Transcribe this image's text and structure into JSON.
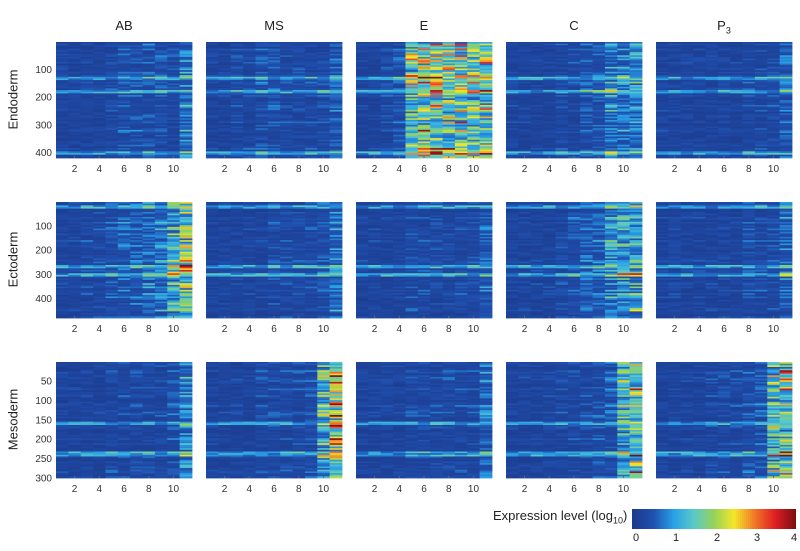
{
  "chart_data": {
    "type": "heatmap",
    "column_titles": [
      "AB",
      "MS",
      "E",
      "C",
      "P3"
    ],
    "column_title_subscript": {
      "P3": "3"
    },
    "row_titles": [
      "Endoderm",
      "Ectoderm",
      "Mesoderm"
    ],
    "x_ticks": [
      2,
      4,
      6,
      8,
      10
    ],
    "x_range": [
      1,
      11
    ],
    "rows": [
      {
        "title": "Endoderm",
        "y_ticks": [
          100,
          200,
          300,
          400
        ],
        "y_range": [
          1,
          420
        ],
        "bands": [
          135,
          180,
          400
        ]
      },
      {
        "title": "Ectoderm",
        "y_ticks": [
          100,
          200,
          300,
          400
        ],
        "y_range": [
          1,
          480
        ],
        "bands": [
          20,
          265,
          300
        ]
      },
      {
        "title": "Mesoderm",
        "y_ticks": [
          50,
          100,
          150,
          200,
          250,
          300
        ],
        "y_range": [
          1,
          300
        ],
        "bands": [
          160,
          235,
          240
        ]
      }
    ],
    "panel_column_levels": [
      [
        [
          0.3,
          0.3,
          0.3,
          0.3,
          0.4,
          0.5,
          0.5,
          0.5,
          0.5,
          0.4,
          0.9
        ],
        [
          0.3,
          0.3,
          0.4,
          0.4,
          0.5,
          0.5,
          0.4,
          0.4,
          0.4,
          0.4,
          0.6
        ],
        [
          0.3,
          0.3,
          0.4,
          0.5,
          1.9,
          2.0,
          2.1,
          2.0,
          1.9,
          1.8,
          1.9
        ],
        [
          0.3,
          0.3,
          0.3,
          0.3,
          0.4,
          0.4,
          0.5,
          0.6,
          0.9,
          0.8,
          1.0
        ],
        [
          0.3,
          0.3,
          0.3,
          0.3,
          0.3,
          0.3,
          0.3,
          0.4,
          0.4,
          0.4,
          0.6
        ]
      ],
      [
        [
          0.3,
          0.3,
          0.4,
          0.4,
          0.5,
          0.6,
          0.6,
          0.7,
          0.8,
          1.4,
          1.8
        ],
        [
          0.3,
          0.3,
          0.3,
          0.3,
          0.3,
          0.4,
          0.4,
          0.4,
          0.4,
          0.5,
          0.8
        ],
        [
          0.3,
          0.3,
          0.3,
          0.3,
          0.4,
          0.4,
          0.4,
          0.4,
          0.4,
          0.4,
          0.6
        ],
        [
          0.3,
          0.3,
          0.3,
          0.3,
          0.4,
          0.5,
          0.6,
          0.7,
          1.0,
          1.2,
          1.3
        ],
        [
          0.3,
          0.3,
          0.3,
          0.3,
          0.3,
          0.3,
          0.3,
          0.4,
          0.4,
          0.4,
          0.7
        ]
      ],
      [
        [
          0.3,
          0.3,
          0.3,
          0.3,
          0.4,
          0.4,
          0.4,
          0.4,
          0.4,
          0.5,
          1.0
        ],
        [
          0.3,
          0.3,
          0.3,
          0.3,
          0.4,
          0.4,
          0.4,
          0.4,
          0.5,
          1.5,
          2.5
        ],
        [
          0.3,
          0.3,
          0.3,
          0.3,
          0.4,
          0.4,
          0.4,
          0.4,
          0.4,
          0.4,
          0.8
        ],
        [
          0.3,
          0.3,
          0.3,
          0.3,
          0.4,
          0.4,
          0.4,
          0.5,
          0.6,
          1.6,
          2.1
        ],
        [
          0.3,
          0.3,
          0.3,
          0.3,
          0.4,
          0.4,
          0.4,
          0.5,
          0.6,
          1.7,
          2.1
        ]
      ]
    ],
    "colorbar": {
      "label": "Expression level (log",
      "label_sub": "10",
      "label_end": ")",
      "range": [
        0,
        4
      ],
      "ticks": [
        0,
        1,
        2,
        3,
        4
      ],
      "colormap": "jet"
    }
  }
}
